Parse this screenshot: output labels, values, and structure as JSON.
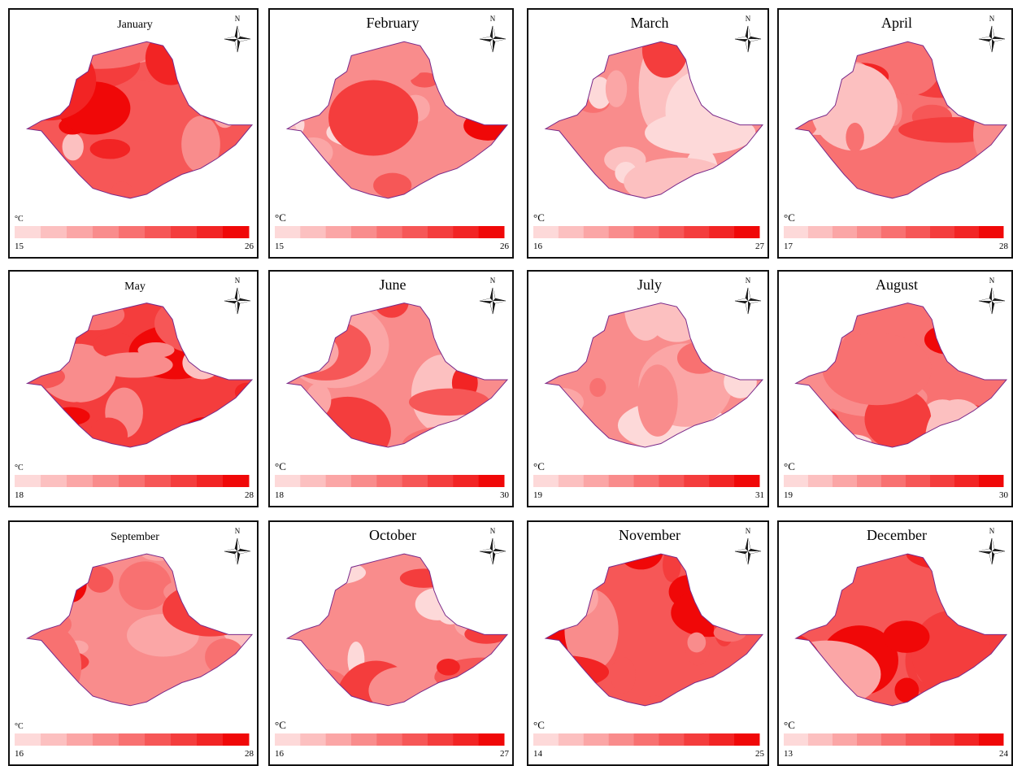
{
  "panels": [
    {
      "title": "January",
      "unit": "°C",
      "min": 15,
      "max": 26,
      "north": "N"
    },
    {
      "title": "February",
      "unit": "°C",
      "min": 15,
      "max": 26,
      "north": "N"
    },
    {
      "title": "March",
      "unit": "°C",
      "min": 16,
      "max": 27,
      "north": "N"
    },
    {
      "title": "April",
      "unit": "°C",
      "min": 17,
      "max": 28,
      "north": "N"
    },
    {
      "title": "May",
      "unit": "°C",
      "min": 18,
      "max": 28,
      "north": "N"
    },
    {
      "title": "June",
      "unit": "°C",
      "min": 18,
      "max": 30,
      "north": "N"
    },
    {
      "title": "July",
      "unit": "°C",
      "min": 19,
      "max": 31,
      "north": "N"
    },
    {
      "title": "August",
      "unit": "°C",
      "min": 19,
      "max": 30,
      "north": "N"
    },
    {
      "title": "September",
      "unit": "°C",
      "min": 16,
      "max": 28,
      "north": "N"
    },
    {
      "title": "October",
      "unit": "°C",
      "min": 16,
      "max": 27,
      "north": "N"
    },
    {
      "title": "November",
      "unit": "°C",
      "min": 14,
      "max": 25,
      "north": "N"
    },
    {
      "title": "December",
      "unit": "°C",
      "min": 13,
      "max": 24,
      "north": "N"
    }
  ]
}
